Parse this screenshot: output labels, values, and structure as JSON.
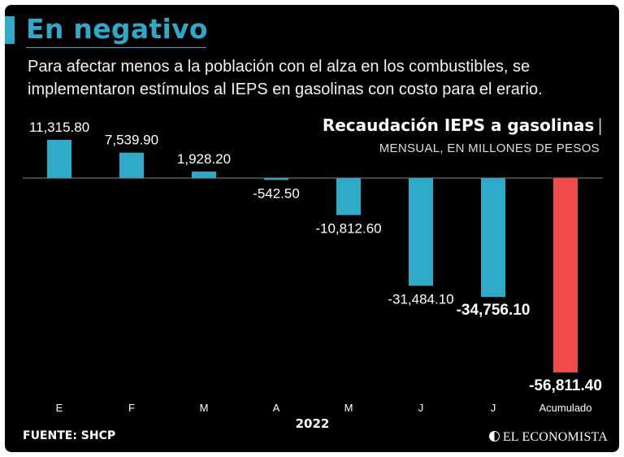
{
  "title": "En negativo",
  "subtitle": "Para afectar menos a la población con el alza en los combustibles, se implementaron estímulos al IEPS en gasolinas con costo para el erario.",
  "source": "FUENTE: SHCP",
  "brand": "EL ECONOMISTA",
  "colors": {
    "accent": "#2ea9c7",
    "bar": "#2ea9c7",
    "total": "#ef4b4b",
    "background": "#000000"
  },
  "chart_data": {
    "type": "bar",
    "title": "Recaudación IEPS a gasolinas",
    "subtitle": "MENSUAL, EN MILLONES DE PESOS",
    "xlabel": "2022",
    "ylabel": "",
    "categories": [
      "E",
      "F",
      "M",
      "A",
      "M",
      "J",
      "J",
      "Acumulado"
    ],
    "values": [
      11315.8,
      7539.9,
      1928.2,
      -542.5,
      -10812.6,
      -31484.1,
      -34756.1,
      -56811.4
    ],
    "labels": [
      "11,315.80",
      "7,539.90",
      "1,928.20",
      "-542.50",
      "-10,812.60",
      "-31,484.10",
      "-34,756.10",
      "-56,811.40"
    ],
    "highlight": [
      false,
      false,
      false,
      false,
      false,
      false,
      true,
      true
    ],
    "ylim": [
      -56811.4,
      11315.8
    ]
  }
}
